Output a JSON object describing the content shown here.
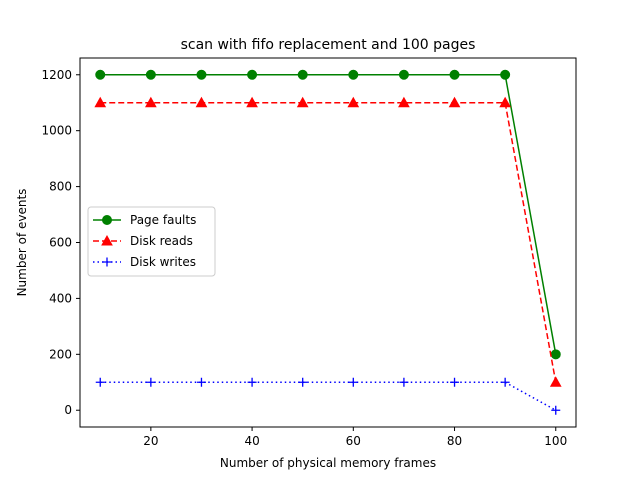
{
  "chart_data": {
    "type": "line",
    "title": "scan with fifo replacement and 100 pages",
    "xlabel": "Number of physical memory frames",
    "ylabel": "Number of events",
    "xlim": [
      6,
      104
    ],
    "ylim": [
      -60,
      1260
    ],
    "xticks": [
      20,
      40,
      60,
      80,
      100
    ],
    "yticks": [
      0,
      200,
      400,
      600,
      800,
      1000,
      1200
    ],
    "grid": false,
    "legend_position": "center-left",
    "x": [
      10,
      20,
      30,
      40,
      50,
      60,
      70,
      80,
      90,
      100
    ],
    "series": [
      {
        "name": "Page faults",
        "color": "#008000",
        "line_style": "solid",
        "marker": "circle",
        "values": [
          1200,
          1200,
          1200,
          1200,
          1200,
          1200,
          1200,
          1200,
          1200,
          200
        ]
      },
      {
        "name": "Disk reads",
        "color": "#ff0000",
        "line_style": "dashed",
        "marker": "triangle",
        "values": [
          1100,
          1100,
          1100,
          1100,
          1100,
          1100,
          1100,
          1100,
          1100,
          100
        ]
      },
      {
        "name": "Disk writes",
        "color": "#0000ff",
        "line_style": "dotted",
        "marker": "plus",
        "values": [
          100,
          100,
          100,
          100,
          100,
          100,
          100,
          100,
          100,
          0
        ]
      }
    ]
  }
}
